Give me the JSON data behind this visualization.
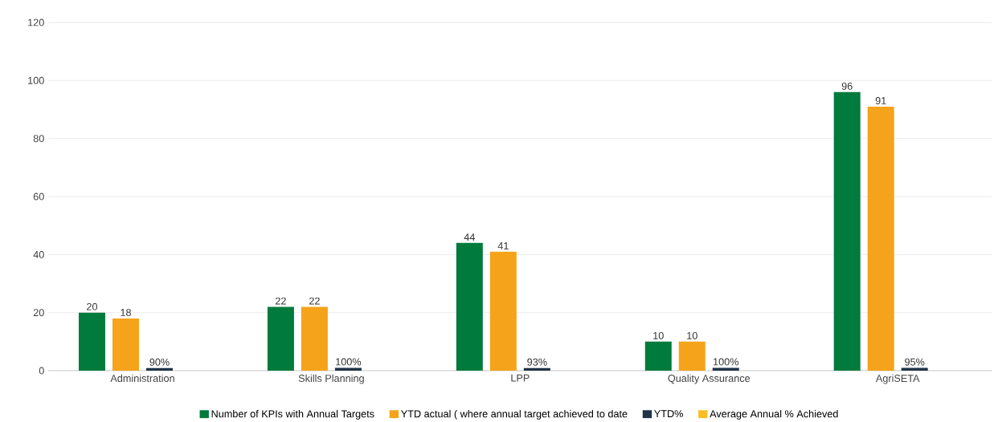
{
  "chart_data": {
    "type": "bar",
    "categories": [
      "Administration",
      "Skills Planning",
      "LPP",
      "Quality Assurance",
      "AgriSETA"
    ],
    "series": [
      {
        "name": "Number of KPIs with Annual Targets",
        "color": "#007a3d",
        "values": [
          20,
          22,
          44,
          10,
          96
        ],
        "value_labels": [
          "20",
          "22",
          "44",
          "10",
          "96"
        ]
      },
      {
        "name": "YTD actual ( where annual target achieved to date",
        "color": "#f5a31a",
        "values": [
          18,
          22,
          41,
          10,
          91
        ],
        "value_labels": [
          "18",
          "22",
          "41",
          "10",
          "91"
        ]
      },
      {
        "name": "YTD%",
        "color": "#1f3447",
        "values": [
          0.9,
          1.0,
          0.93,
          1.0,
          0.95
        ],
        "value_labels": [
          "90%",
          "100%",
          "93%",
          "100%",
          "95%"
        ]
      },
      {
        "name": "Average Annual % Achieved",
        "color": "#fbbf24",
        "values": [
          null,
          null,
          null,
          null,
          null
        ]
      }
    ],
    "ylim": [
      0,
      120
    ],
    "yticks": [
      0,
      20,
      40,
      60,
      80,
      100,
      120
    ],
    "grid": "y",
    "legend": "bottom"
  }
}
